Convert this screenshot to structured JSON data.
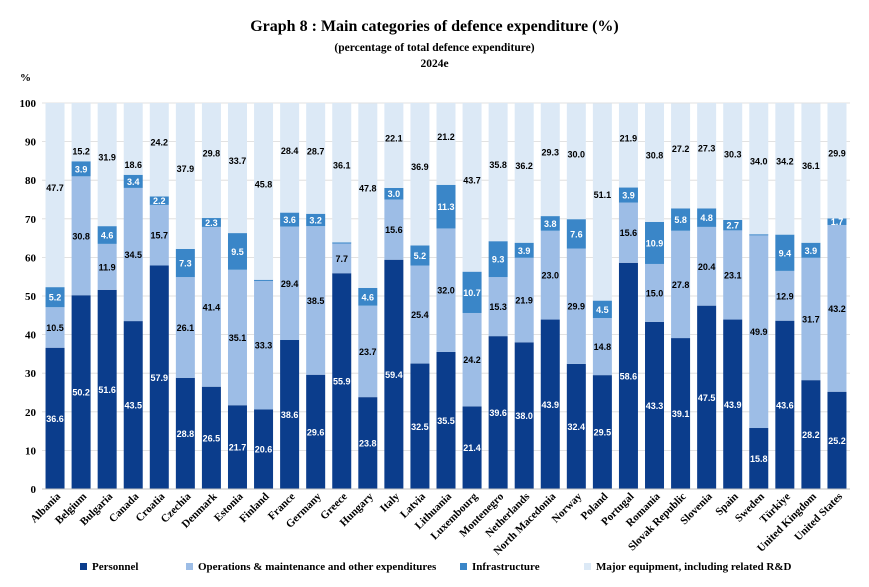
{
  "title": "Graph 8 : Main categories of defence expenditure (%)",
  "subtitle": "(percentage of total defence expenditure)",
  "year": "2024e",
  "unit_label": "%",
  "colors": {
    "personnel": "#0b3d8c",
    "operations": "#9dbde6",
    "infrastructure": "#3a86c8",
    "equipment": "#dce9f6",
    "label_dark": "#000000",
    "label_light": "#ffffff"
  },
  "legend": [
    {
      "label": "Personnel",
      "color": "#0b3d8c"
    },
    {
      "label": "Operations & maintenance and other expenditures",
      "color": "#9dbde6"
    },
    {
      "label": "Infrastructure",
      "color": "#3a86c8"
    },
    {
      "label": "Major equipment, including related R&D",
      "color": "#dce9f6"
    }
  ],
  "chart_data": {
    "type": "bar",
    "stacked": true,
    "ylim": [
      0,
      100
    ],
    "yticks": [
      0,
      10,
      20,
      30,
      40,
      50,
      60,
      70,
      80,
      90,
      100
    ],
    "grid": true,
    "legend_position": "bottom",
    "categories": [
      "Albania",
      "Belgium",
      "Bulgaria",
      "Canada",
      "Croatia",
      "Czechia",
      "Denmark",
      "Estonia",
      "Finland",
      "France",
      "Germany",
      "Greece",
      "Hungary",
      "Italy",
      "Latvia",
      "Lithuania",
      "Luxembourg",
      "Montenegro",
      "Netherlands",
      "North Macedonia",
      "Norway",
      "Poland",
      "Portugal",
      "Romania",
      "Slovak Republic",
      "Slovenia",
      "Spain",
      "Sweden",
      "Türkiye",
      "United Kingdom",
      "United States"
    ],
    "series": [
      {
        "name": "Personnel",
        "values": [
          36.6,
          50.2,
          51.6,
          43.5,
          57.9,
          28.8,
          26.5,
          21.7,
          20.6,
          38.6,
          29.6,
          55.9,
          23.8,
          59.4,
          32.5,
          35.5,
          21.4,
          39.6,
          38.0,
          43.9,
          32.4,
          29.5,
          58.6,
          43.3,
          39.1,
          47.5,
          43.9,
          15.8,
          43.6,
          28.2,
          25.2
        ]
      },
      {
        "name": "Operations & maintenance and other expenditures",
        "values": [
          10.5,
          30.8,
          11.9,
          34.5,
          15.7,
          26.1,
          41.4,
          35.1,
          33.3,
          29.4,
          38.5,
          7.7,
          23.7,
          15.6,
          25.4,
          32.0,
          24.2,
          15.3,
          21.9,
          23.0,
          29.9,
          14.8,
          15.6,
          15.0,
          27.8,
          20.4,
          23.1,
          49.9,
          12.9,
          31.7,
          43.2
        ]
      },
      {
        "name": "Infrastructure",
        "values": [
          5.2,
          3.9,
          4.6,
          3.4,
          2.2,
          7.3,
          2.3,
          9.5,
          0.3,
          3.6,
          3.2,
          0.3,
          4.6,
          3.0,
          5.2,
          11.3,
          10.7,
          9.3,
          3.9,
          3.8,
          7.6,
          4.5,
          3.9,
          10.9,
          5.8,
          4.8,
          2.7,
          0.3,
          9.4,
          3.9,
          1.7
        ]
      },
      {
        "name": "Major equipment, including related R&D",
        "values": [
          47.7,
          15.2,
          31.9,
          18.6,
          24.2,
          37.9,
          29.8,
          33.7,
          45.8,
          28.4,
          28.7,
          36.1,
          47.8,
          22.1,
          36.9,
          21.2,
          43.7,
          35.8,
          36.2,
          29.3,
          30.0,
          51.1,
          21.9,
          30.8,
          27.2,
          27.3,
          30.3,
          34.0,
          34.2,
          36.1,
          29.9
        ]
      }
    ]
  }
}
